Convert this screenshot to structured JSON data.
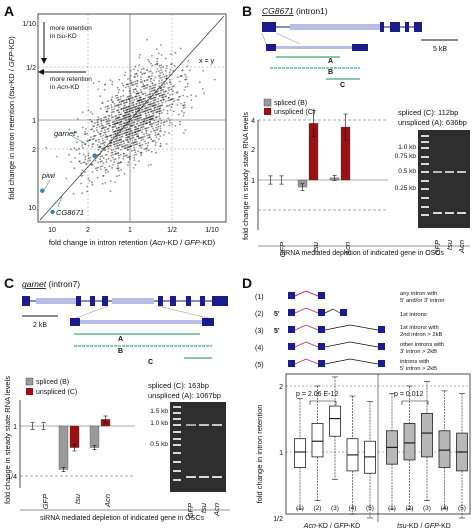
{
  "panels": {
    "A": {
      "letter": "A",
      "xlabel_pre": "fold change in intron retention (",
      "xlabel_mid1": "Acn",
      "xlabel_mid2": "-KD / ",
      "xlabel_mid3": "GFP",
      "xlabel_post": "-KD)",
      "ylabel_pre": "fold change in intron retention (",
      "ylabel_mid1": "tsu",
      "ylabel_mid2": "-KD / ",
      "ylabel_mid3": "GFP",
      "ylabel_post": "-KD)",
      "x_ticks": [
        "10",
        "2",
        "1",
        "1/2",
        "1/10"
      ],
      "y_ticks": [
        "1/10",
        "1/2",
        "1",
        "2",
        "10"
      ],
      "diag_label": "x = y",
      "arrow_tsu_1": "more retention",
      "arrow_tsu_2_pre": "in ",
      "arrow_tsu_2_ital": "tsu",
      "arrow_tsu_2_post": "-KD",
      "arrow_acn_1": "more retention",
      "arrow_acn_2_pre": "in ",
      "arrow_acn_2_ital": "Acn",
      "arrow_acn_2_post": "-KD",
      "genes": [
        "garnet",
        "piwi",
        "CG8671"
      ]
    },
    "B": {
      "letter": "B",
      "title": "CG8671",
      "title_suffix": " (intron1)",
      "scale": "5 kB",
      "amplicons": [
        "A",
        "B",
        "C"
      ],
      "legend": [
        "spliced (B)",
        "unspliced (C)"
      ],
      "ylabel": "fold change in steady state RNA levels",
      "y_ticks": [
        "4",
        "2",
        "1"
      ],
      "categories": [
        "GFP",
        "tsu",
        "Acn"
      ],
      "sizes_1": "spliced (C): 112bp",
      "sizes_2": "unspliced (A): 636bp",
      "ladder": [
        "1.0 kb",
        "0.75 kb",
        "0.5 kb",
        "0.25 kb"
      ],
      "gel_lanes": [
        "GFP",
        "tsu",
        "Acn"
      ],
      "footer": "siRNA mediated depletion of indicated gene in OSCs"
    },
    "C": {
      "letter": "C",
      "title": "garnet",
      "title_suffix": " (intron7)",
      "scale": "2 kB",
      "amplicons": [
        "A",
        "B",
        "C"
      ],
      "legend": [
        "spliced (B)",
        "unspliced (C)"
      ],
      "ylabel": "fold change in steady state RNA levels",
      "y_ticks": [
        "1",
        "1/4"
      ],
      "categories": [
        "GFP",
        "tsu",
        "Acn"
      ],
      "sizes_1": "spliced (C): 163bp",
      "sizes_2": "unspliced (A): 1067bp",
      "ladder": [
        "1.5 kb",
        "1.0 kb",
        "0.5 kb"
      ],
      "gel_lanes": [
        "GFP",
        "tsu",
        "Acn"
      ],
      "footer": "siRNA mediated depletion of indicated gene in OSCs"
    },
    "D": {
      "letter": "D",
      "rows": [
        {
          "num": "(1)",
          "label1": "any intron with",
          "label2": "5' and/or 3' intron",
          "fivep": ""
        },
        {
          "num": "(2)",
          "label1": "1st introns",
          "label2": "",
          "fivep": "5'"
        },
        {
          "num": "(3)",
          "label1": "1st introns with",
          "label2": "2nd intron > 2kB",
          "fivep": "5'"
        },
        {
          "num": "(4)",
          "label1": "other introns with",
          "label2": "3' intron > 2kB",
          "fivep": ""
        },
        {
          "num": "(5)",
          "label1": "introns with",
          "label2": "5' intron > 2kB",
          "fivep": ""
        }
      ],
      "ylabel": "fold change in intron retention",
      "y_ticks": [
        "2",
        "1",
        "1/2"
      ],
      "p1": "p = 2.06 E-12",
      "p2": "p = 0.012",
      "box_labels": [
        "(1)",
        "(2)",
        "(3)",
        "(4)",
        "(5)"
      ],
      "group1_pre": "Acn",
      "group1_mid": "-KD / ",
      "group1_mid2": "GFP",
      "group1_post": "-KD",
      "group2_pre": "tsu",
      "group2_mid": "-KD / ",
      "group2_mid2": "GFP",
      "group2_post": "-KD"
    }
  },
  "chart_data": [
    {
      "type": "scatter",
      "panel": "A",
      "xscale": "log",
      "yscale": "log",
      "xlim": [
        10,
        0.1
      ],
      "ylim": [
        0.1,
        10
      ],
      "highlighted": [
        {
          "name": "garnet",
          "x": 2.5,
          "y": 2.3
        },
        {
          "name": "piwi",
          "x": 9,
          "y": 5
        },
        {
          "name": "CG8671",
          "x": 7,
          "y": 8
        }
      ]
    },
    {
      "type": "bar",
      "panel": "B",
      "categories": [
        "GFP",
        "tsu",
        "Acn"
      ],
      "yscale": "log",
      "series": [
        {
          "name": "spliced (B)",
          "values": [
            1,
            0.85,
            1.05
          ],
          "err": [
            0.1,
            0.08,
            0.06
          ],
          "color": "#9a9a9a"
        },
        {
          "name": "unspliced (C)",
          "values": [
            1,
            3.7,
            3.4
          ],
          "err": [
            0.1,
            0.35,
            0.35
          ],
          "color": "#9b1111"
        }
      ]
    },
    {
      "type": "bar",
      "panel": "C",
      "categories": [
        "GFP",
        "tsu",
        "Acn"
      ],
      "yscale": "log",
      "series": [
        {
          "name": "spliced (B)",
          "values": [
            1,
            0.3,
            0.55
          ],
          "err": [
            0.1,
            0.06,
            0.06
          ],
          "color": "#9a9a9a"
        },
        {
          "name": "unspliced (C)",
          "values": [
            1,
            0.55,
            1.2
          ],
          "err": [
            0.1,
            0.1,
            0.1
          ],
          "color": "#9b1111"
        }
      ]
    },
    {
      "type": "box",
      "panel": "D",
      "yscale": "log",
      "groups": [
        {
          "name": "Acn-KD / GFP-KD",
          "boxes": [
            {
              "label": "(1)",
              "q1": 0.85,
              "median": 1.0,
              "q3": 1.15,
              "lo": 0.55,
              "hi": 1.75
            },
            {
              "label": "(2)",
              "q1": 0.95,
              "median": 1.12,
              "q3": 1.35,
              "lo": 0.6,
              "hi": 2.0
            },
            {
              "label": "(3)",
              "q1": 1.18,
              "median": 1.42,
              "q3": 1.62,
              "lo": 0.75,
              "hi": 2.2
            },
            {
              "label": "(4)",
              "q1": 0.82,
              "median": 0.97,
              "q3": 1.15,
              "lo": 0.52,
              "hi": 1.8
            },
            {
              "label": "(5)",
              "q1": 0.8,
              "median": 0.95,
              "q3": 1.12,
              "lo": 0.5,
              "hi": 1.7
            }
          ]
        },
        {
          "name": "tsu-KD / GFP-KD",
          "boxes": [
            {
              "label": "(1)",
              "q1": 0.88,
              "median": 1.05,
              "q3": 1.25,
              "lo": 0.55,
              "hi": 1.85
            },
            {
              "label": "(2)",
              "q1": 0.92,
              "median": 1.1,
              "q3": 1.35,
              "lo": 0.55,
              "hi": 2.0
            },
            {
              "label": "(3)",
              "q1": 0.95,
              "median": 1.22,
              "q3": 1.5,
              "lo": 0.6,
              "hi": 2.1
            },
            {
              "label": "(4)",
              "q1": 0.85,
              "median": 1.02,
              "q3": 1.25,
              "lo": 0.55,
              "hi": 1.9
            },
            {
              "label": "(5)",
              "q1": 0.82,
              "median": 1.0,
              "q3": 1.22,
              "lo": 0.5,
              "hi": 1.85
            }
          ]
        }
      ],
      "colors": {
        "group1": "#ffffff",
        "group2": "#b8b8b8"
      }
    }
  ]
}
